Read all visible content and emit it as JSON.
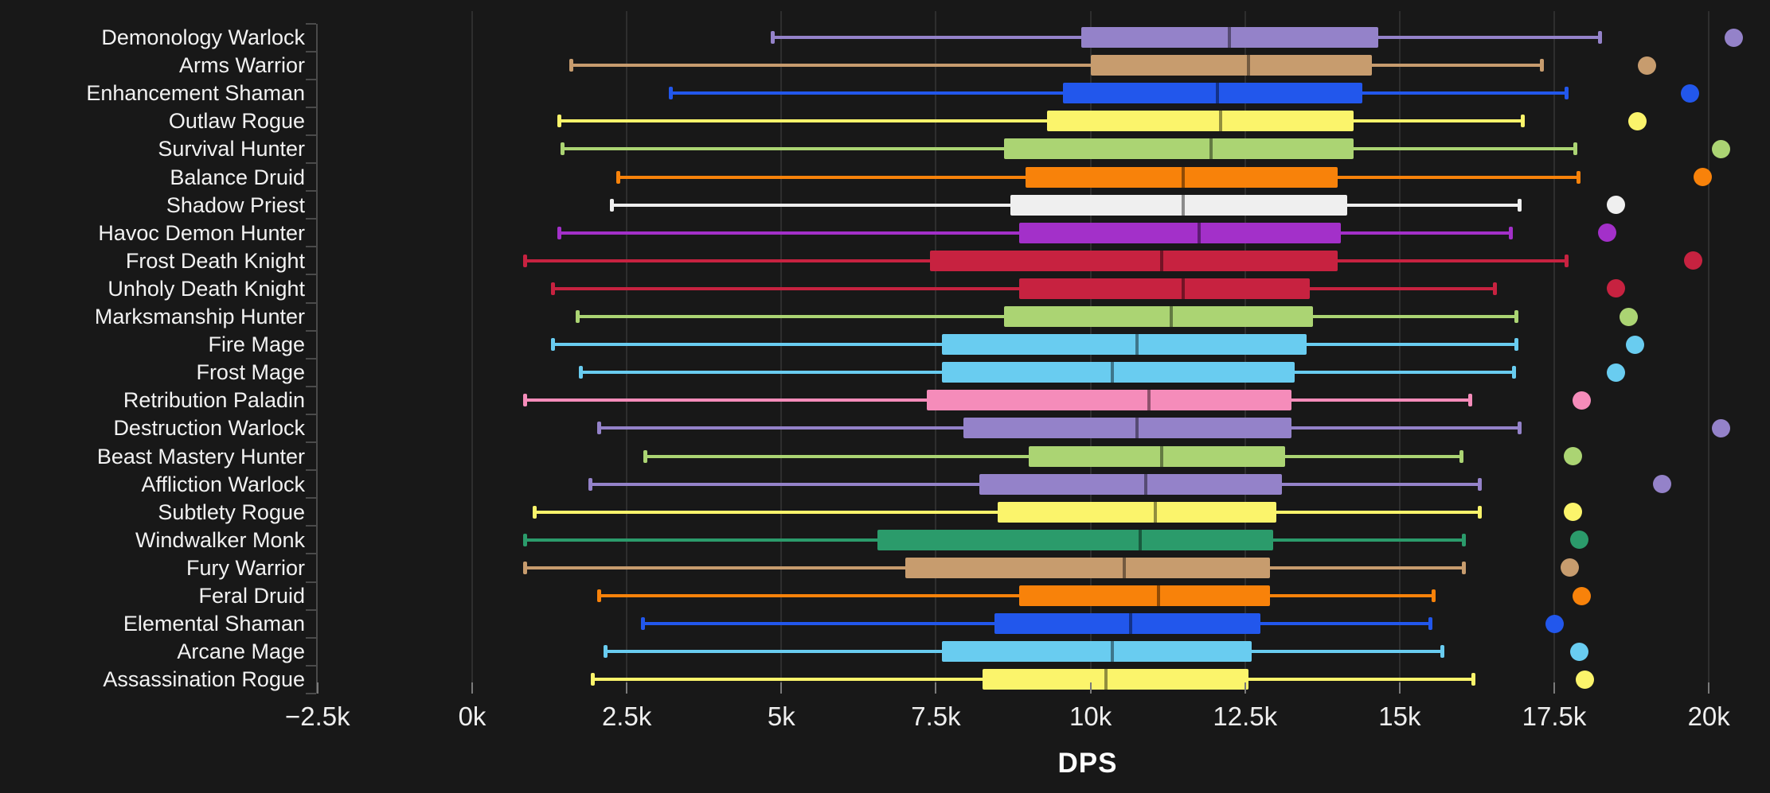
{
  "chart_data": {
    "type": "box",
    "orientation": "horizontal",
    "title": "",
    "xlabel": "DPS",
    "grid": "vertical",
    "x_range_dps": [
      -2500,
      21000
    ],
    "x_ticks": [
      {
        "label": "−2.5k",
        "value": -2500
      },
      {
        "label": "0k",
        "value": 0
      },
      {
        "label": "2.5k",
        "value": 2500
      },
      {
        "label": "5k",
        "value": 5000
      },
      {
        "label": "7.5k",
        "value": 7500
      },
      {
        "label": "10k",
        "value": 10000
      },
      {
        "label": "12.5k",
        "value": 12500
      },
      {
        "label": "15k",
        "value": 15000
      },
      {
        "label": "17.5k",
        "value": 17500
      },
      {
        "label": "20k",
        "value": 20000
      }
    ],
    "series": [
      {
        "label": "Demonology Warlock",
        "color": "#9482C9",
        "min": 4850,
        "q1": 9850,
        "median": 12250,
        "q3": 14650,
        "max": 18250,
        "outlier": 20400
      },
      {
        "label": "Arms Warrior",
        "color": "#C79C6E",
        "min": 1600,
        "q1": 10000,
        "median": 12550,
        "q3": 14550,
        "max": 17300,
        "outlier": 19000
      },
      {
        "label": "Enhancement Shaman",
        "color": "#2257EC",
        "min": 3200,
        "q1": 9550,
        "median": 12050,
        "q3": 14400,
        "max": 17700,
        "outlier": 19700
      },
      {
        "label": "Outlaw Rogue",
        "color": "#FBF46B",
        "min": 1400,
        "q1": 9300,
        "median": 12100,
        "q3": 14250,
        "max": 17000,
        "outlier": 18850
      },
      {
        "label": "Survival Hunter",
        "color": "#ABD473",
        "min": 1450,
        "q1": 8600,
        "median": 11950,
        "q3": 14250,
        "max": 17850,
        "outlier": 20200
      },
      {
        "label": "Balance Druid",
        "color": "#F8820A",
        "min": 2350,
        "q1": 8950,
        "median": 11500,
        "q3": 14000,
        "max": 17900,
        "outlier": 19900
      },
      {
        "label": "Shadow Priest",
        "color": "#EFEFEF",
        "min": 2250,
        "q1": 8700,
        "median": 11500,
        "q3": 14150,
        "max": 16950,
        "outlier": 18500
      },
      {
        "label": "Havoc Demon Hunter",
        "color": "#A330C9",
        "min": 1400,
        "q1": 8850,
        "median": 11750,
        "q3": 14050,
        "max": 16800,
        "outlier": 18350
      },
      {
        "label": "Frost Death Knight",
        "color": "#C72240",
        "min": 850,
        "q1": 7400,
        "median": 11150,
        "q3": 14000,
        "max": 17700,
        "outlier": 19750
      },
      {
        "label": "Unholy Death Knight",
        "color": "#C72240",
        "min": 1300,
        "q1": 8850,
        "median": 11500,
        "q3": 13550,
        "max": 16550,
        "outlier": 18500
      },
      {
        "label": "Marksmanship Hunter",
        "color": "#ABD473",
        "min": 1700,
        "q1": 8600,
        "median": 11300,
        "q3": 13600,
        "max": 16900,
        "outlier": 18700
      },
      {
        "label": "Fire Mage",
        "color": "#69CCF0",
        "min": 1300,
        "q1": 7600,
        "median": 10750,
        "q3": 13500,
        "max": 16900,
        "outlier": 18800
      },
      {
        "label": "Frost Mage",
        "color": "#69CCF0",
        "min": 1750,
        "q1": 7600,
        "median": 10350,
        "q3": 13300,
        "max": 16850,
        "outlier": 18500
      },
      {
        "label": "Retribution Paladin",
        "color": "#F58CBA",
        "min": 850,
        "q1": 7350,
        "median": 10950,
        "q3": 13250,
        "max": 16150,
        "outlier": 17950
      },
      {
        "label": "Destruction Warlock",
        "color": "#9482C9",
        "min": 2050,
        "q1": 7950,
        "median": 10750,
        "q3": 13250,
        "max": 16950,
        "outlier": 20200
      },
      {
        "label": "Beast Mastery Hunter",
        "color": "#ABD473",
        "min": 2800,
        "q1": 9000,
        "median": 11150,
        "q3": 13150,
        "max": 16000,
        "outlier": 17800
      },
      {
        "label": "Affliction Warlock",
        "color": "#9482C9",
        "min": 1900,
        "q1": 8200,
        "median": 10900,
        "q3": 13100,
        "max": 16300,
        "outlier": 19250
      },
      {
        "label": "Subtlety Rogue",
        "color": "#FBF46B",
        "min": 1000,
        "q1": 8500,
        "median": 11050,
        "q3": 13000,
        "max": 16300,
        "outlier": 17800
      },
      {
        "label": "Windwalker Monk",
        "color": "#2B9B6B",
        "min": 850,
        "q1": 6550,
        "median": 10800,
        "q3": 12950,
        "max": 16050,
        "outlier": 17900
      },
      {
        "label": "Fury Warrior",
        "color": "#C79C6E",
        "min": 850,
        "q1": 7000,
        "median": 10550,
        "q3": 12900,
        "max": 16050,
        "outlier": 17750
      },
      {
        "label": "Feral Druid",
        "color": "#F8820A",
        "min": 2050,
        "q1": 8850,
        "median": 11100,
        "q3": 12900,
        "max": 15550,
        "outlier": 17950
      },
      {
        "label": "Elemental Shaman",
        "color": "#2257EC",
        "min": 2750,
        "q1": 8450,
        "median": 10650,
        "q3": 12750,
        "max": 15500,
        "outlier": 17500
      },
      {
        "label": "Arcane Mage",
        "color": "#69CCF0",
        "min": 2150,
        "q1": 7600,
        "median": 10350,
        "q3": 12600,
        "max": 15700,
        "outlier": 17900
      },
      {
        "label": "Assassination Rogue",
        "color": "#FBF46B",
        "min": 1950,
        "q1": 8250,
        "median": 10250,
        "q3": 12550,
        "max": 16200,
        "outlier": 18000
      }
    ]
  },
  "colors": {
    "background": "#181818",
    "gridline": "#2E2E2E",
    "axis": "#4A4A4A",
    "xtick": "#7A7A7A",
    "text": "#F2F2F2"
  }
}
